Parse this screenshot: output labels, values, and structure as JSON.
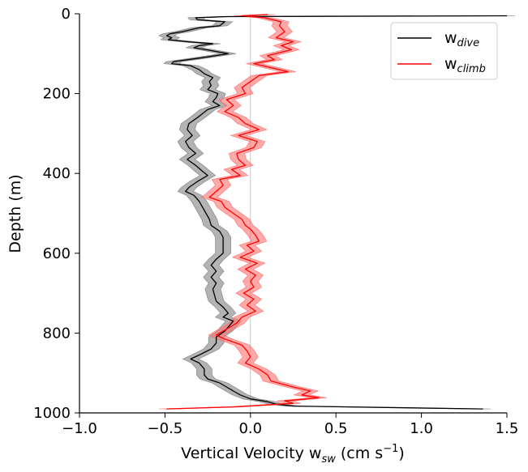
{
  "chart_data": {
    "type": "line",
    "title": "",
    "xlabel": {
      "base": "Vertical Velocity w",
      "sub": "sw",
      "mid": " (cm s",
      "sup": "−1",
      "end": ")"
    },
    "ylabel": "Depth (m)",
    "xlim": [
      -1.0,
      1.5
    ],
    "ylim": [
      1000,
      0
    ],
    "y_inverted": true,
    "xticks": [
      "−1.0",
      "−0.5",
      "0.0",
      "0.5",
      "1.0",
      "1.5"
    ],
    "xtick_values": [
      -1.0,
      -0.5,
      0.0,
      0.5,
      1.0,
      1.5
    ],
    "yticks": [
      "0",
      "200",
      "400",
      "600",
      "800",
      "1000"
    ],
    "ytick_values": [
      0,
      200,
      400,
      600,
      800,
      1000
    ],
    "zero_line_x": 0.0,
    "legend_position": "top-right",
    "series": [
      {
        "name_base": "w",
        "name_sub": "dive",
        "color": "#000000",
        "band_color": "#808080",
        "band_half_width": 0.045,
        "points": [
          [
            1.5,
            5
          ],
          [
            -0.14,
            7
          ],
          [
            -0.32,
            10
          ],
          [
            -0.31,
            15
          ],
          [
            -0.15,
            20
          ],
          [
            -0.18,
            30
          ],
          [
            -0.3,
            35
          ],
          [
            -0.4,
            45
          ],
          [
            -0.47,
            50
          ],
          [
            -0.49,
            55
          ],
          [
            -0.46,
            60
          ],
          [
            -0.48,
            65
          ],
          [
            -0.37,
            70
          ],
          [
            -0.22,
            75
          ],
          [
            -0.3,
            80
          ],
          [
            -0.33,
            85
          ],
          [
            -0.26,
            90
          ],
          [
            -0.13,
            100
          ],
          [
            -0.28,
            110
          ],
          [
            -0.45,
            120
          ],
          [
            -0.46,
            125
          ],
          [
            -0.35,
            130
          ],
          [
            -0.3,
            140
          ],
          [
            -0.27,
            150
          ],
          [
            -0.22,
            160
          ],
          [
            -0.24,
            170
          ],
          [
            -0.23,
            180
          ],
          [
            -0.25,
            190
          ],
          [
            -0.19,
            200
          ],
          [
            -0.2,
            210
          ],
          [
            -0.22,
            220
          ],
          [
            -0.18,
            230
          ],
          [
            -0.25,
            240
          ],
          [
            -0.28,
            250
          ],
          [
            -0.31,
            260
          ],
          [
            -0.36,
            275
          ],
          [
            -0.37,
            290
          ],
          [
            -0.34,
            305
          ],
          [
            -0.38,
            320
          ],
          [
            -0.36,
            335
          ],
          [
            -0.32,
            350
          ],
          [
            -0.37,
            365
          ],
          [
            -0.32,
            380
          ],
          [
            -0.28,
            395
          ],
          [
            -0.25,
            405
          ],
          [
            -0.31,
            420
          ],
          [
            -0.36,
            435
          ],
          [
            -0.38,
            445
          ],
          [
            -0.33,
            455
          ],
          [
            -0.3,
            470
          ],
          [
            -0.28,
            485
          ],
          [
            -0.26,
            500
          ],
          [
            -0.24,
            515
          ],
          [
            -0.23,
            530
          ],
          [
            -0.18,
            545
          ],
          [
            -0.16,
            560
          ],
          [
            -0.16,
            580
          ],
          [
            -0.16,
            600
          ],
          [
            -0.2,
            615
          ],
          [
            -0.23,
            630
          ],
          [
            -0.2,
            645
          ],
          [
            -0.23,
            660
          ],
          [
            -0.2,
            675
          ],
          [
            -0.22,
            690
          ],
          [
            -0.21,
            705
          ],
          [
            -0.2,
            720
          ],
          [
            -0.16,
            735
          ],
          [
            -0.13,
            750
          ],
          [
            -0.16,
            760
          ],
          [
            -0.1,
            770
          ],
          [
            -0.12,
            780
          ],
          [
            -0.15,
            795
          ],
          [
            -0.2,
            810
          ],
          [
            -0.2,
            825
          ],
          [
            -0.23,
            840
          ],
          [
            -0.3,
            855
          ],
          [
            -0.35,
            865
          ],
          [
            -0.3,
            875
          ],
          [
            -0.27,
            890
          ],
          [
            -0.27,
            905
          ],
          [
            -0.25,
            915
          ],
          [
            -0.18,
            925
          ],
          [
            -0.14,
            935
          ],
          [
            -0.1,
            945
          ],
          [
            -0.06,
            955
          ],
          [
            0.0,
            965
          ],
          [
            0.1,
            972
          ],
          [
            0.15,
            978
          ],
          [
            0.25,
            983
          ],
          [
            1.36,
            990
          ]
        ]
      },
      {
        "name_base": "w",
        "name_sub": "climb",
        "color": "#ff0000",
        "band_color": "#ff6f6f",
        "band_half_width": 0.045,
        "points": [
          [
            0.1,
            2
          ],
          [
            -0.05,
            5
          ],
          [
            0.08,
            10
          ],
          [
            0.18,
            20
          ],
          [
            0.17,
            30
          ],
          [
            0.2,
            45
          ],
          [
            0.15,
            60
          ],
          [
            0.25,
            70
          ],
          [
            0.18,
            80
          ],
          [
            0.24,
            90
          ],
          [
            0.1,
            105
          ],
          [
            0.14,
            115
          ],
          [
            0.02,
            125
          ],
          [
            0.22,
            145
          ],
          [
            0.05,
            155
          ],
          [
            0.0,
            170
          ],
          [
            -0.05,
            185
          ],
          [
            -0.03,
            200
          ],
          [
            -0.14,
            215
          ],
          [
            -0.1,
            230
          ],
          [
            -0.15,
            245
          ],
          [
            -0.07,
            260
          ],
          [
            -0.03,
            275
          ],
          [
            0.05,
            290
          ],
          [
            -0.07,
            305
          ],
          [
            0.04,
            320
          ],
          [
            0.02,
            335
          ],
          [
            -0.08,
            350
          ],
          [
            -0.07,
            365
          ],
          [
            -0.03,
            380
          ],
          [
            -0.11,
            390
          ],
          [
            -0.06,
            405
          ],
          [
            -0.18,
            415
          ],
          [
            -0.16,
            430
          ],
          [
            -0.2,
            445
          ],
          [
            -0.24,
            460
          ],
          [
            -0.17,
            470
          ],
          [
            -0.15,
            485
          ],
          [
            -0.1,
            500
          ],
          [
            -0.05,
            515
          ],
          [
            -0.03,
            530
          ],
          [
            0.0,
            540
          ],
          [
            0.03,
            555
          ],
          [
            0.05,
            570
          ],
          [
            -0.02,
            580
          ],
          [
            0.02,
            595
          ],
          [
            -0.06,
            610
          ],
          [
            0.04,
            625
          ],
          [
            -0.03,
            640
          ],
          [
            0.03,
            655
          ],
          [
            0.0,
            670
          ],
          [
            0.02,
            685
          ],
          [
            -0.04,
            700
          ],
          [
            0.02,
            715
          ],
          [
            -0.02,
            730
          ],
          [
            0.03,
            745
          ],
          [
            -0.05,
            760
          ],
          [
            -0.08,
            775
          ],
          [
            -0.14,
            790
          ],
          [
            -0.2,
            805
          ],
          [
            -0.15,
            815
          ],
          [
            -0.05,
            830
          ],
          [
            -0.02,
            845
          ],
          [
            0.0,
            860
          ],
          [
            -0.03,
            875
          ],
          [
            0.05,
            890
          ],
          [
            0.1,
            905
          ],
          [
            0.12,
            920
          ],
          [
            0.25,
            935
          ],
          [
            0.35,
            945
          ],
          [
            0.3,
            955
          ],
          [
            0.4,
            962
          ],
          [
            0.2,
            970
          ],
          [
            0.25,
            976
          ],
          [
            0.02,
            982
          ],
          [
            -0.1,
            985
          ],
          [
            -0.49,
            990
          ]
        ]
      }
    ]
  }
}
